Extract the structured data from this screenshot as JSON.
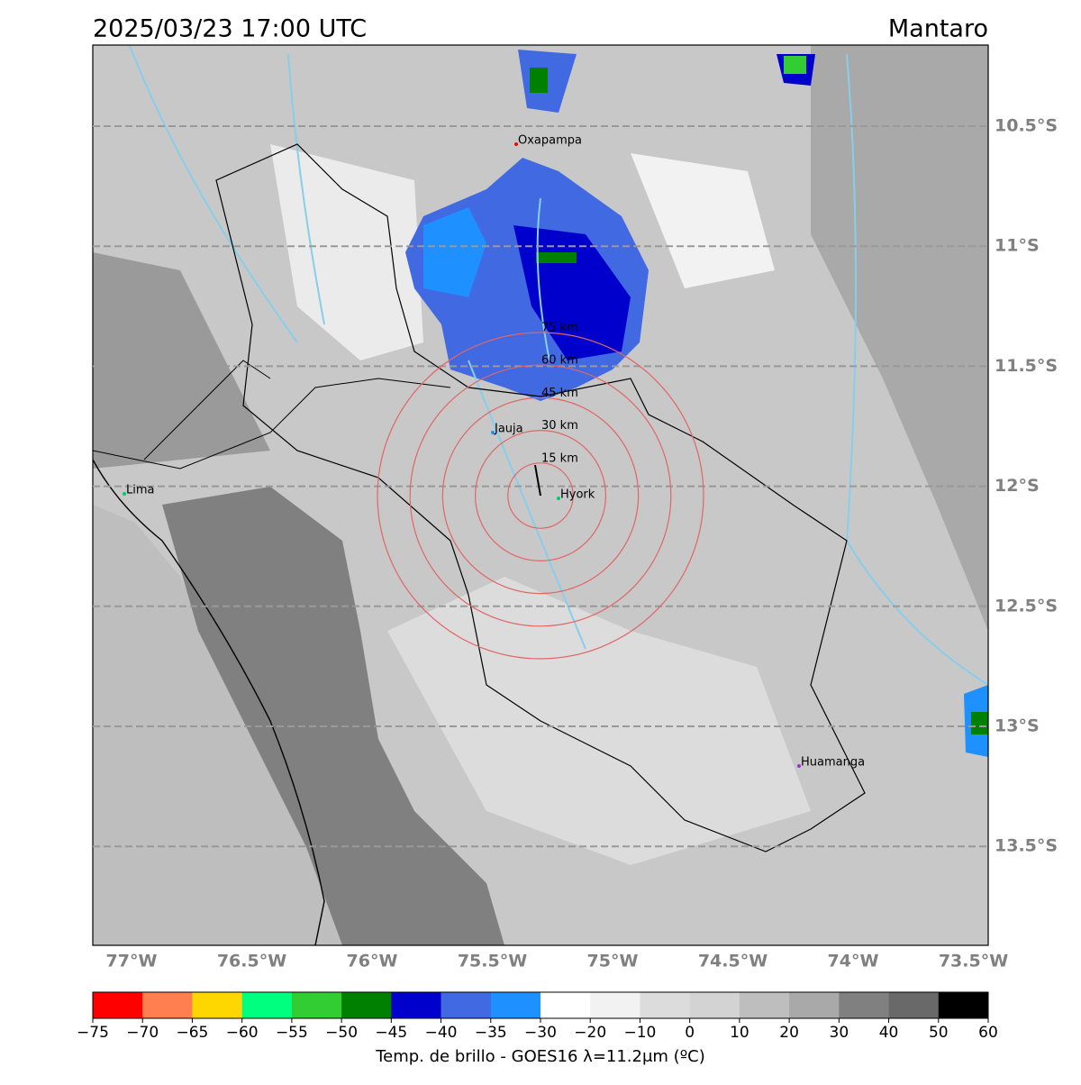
{
  "map": {
    "title": "2025/03/23 17:00 UTC",
    "region": "Mantaro",
    "lat_labels": [
      "10.5°S",
      "11°S",
      "11.5°S",
      "12°S",
      "12.5°S",
      "13°S",
      "13.5°S"
    ],
    "lon_labels": [
      "77°W",
      "76.5°W",
      "76°W",
      "75.5°W",
      "75°W",
      "74.5°W",
      "74°W",
      "73.5°W"
    ],
    "places": [
      "Oxapampa",
      "Jauja",
      "Hyork",
      "Lima",
      "Huamanga"
    ],
    "rings": [
      "15 km",
      "30 km",
      "45 km",
      "60 km",
      "75 km"
    ],
    "colorbar": {
      "bounds": [
        {
          "value": -75,
          "label": "−75"
        },
        {
          "value": -70,
          "label": "−70"
        },
        {
          "value": -65,
          "label": "−65"
        },
        {
          "value": -60,
          "label": "−60"
        },
        {
          "value": -55,
          "label": "−55"
        },
        {
          "value": -50,
          "label": "−50"
        },
        {
          "value": -45,
          "label": "−45"
        },
        {
          "value": -40,
          "label": "−40"
        },
        {
          "value": -35,
          "label": "−35"
        },
        {
          "value": -30,
          "label": "−30"
        },
        {
          "value": -20,
          "label": "−20"
        },
        {
          "value": -10,
          "label": "−10"
        },
        0,
        10,
        20,
        30,
        40,
        50,
        60
      ],
      "colors": [
        "#ff0000",
        "#ff7f50",
        "#ffd700",
        "#00ff7f",
        "#32cd32",
        "#008000",
        "#0000cd",
        "#4169e1",
        "#1e90ff",
        "#ffffff",
        "#f2f2f2",
        "#dcdcdc",
        "#d3d3d3",
        "#bebebe",
        "#a9a9a9",
        "#808080",
        "#696969",
        "#000000"
      ],
      "label": "Temp. de brillo - GOES16 λ=11.2μm (ºC)"
    }
  }
}
